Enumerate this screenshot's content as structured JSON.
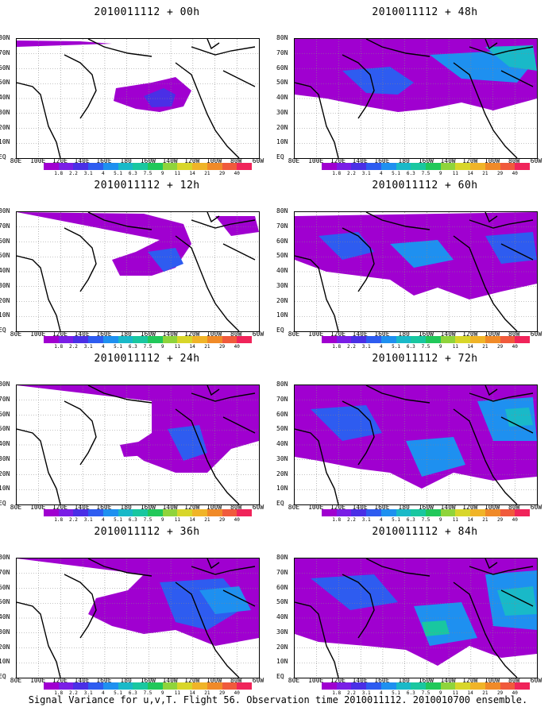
{
  "panels": [
    {
      "title": "2010011112 + 00h"
    },
    {
      "title": "2010011112 + 48h"
    },
    {
      "title": "2010011112 + 12h"
    },
    {
      "title": "2010011112 + 60h"
    },
    {
      "title": "2010011112 + 24h"
    },
    {
      "title": "2010011112 + 72h"
    },
    {
      "title": "2010011112 + 36h"
    },
    {
      "title": "2010011112 + 84h"
    }
  ],
  "lat_labels": [
    "80N",
    "70N",
    "60N",
    "50N",
    "40N",
    "30N",
    "20N",
    "10N",
    "EQ"
  ],
  "lon_labels": [
    "80E",
    "100E",
    "120E",
    "140E",
    "160E",
    "180",
    "160W",
    "140W",
    "120W",
    "100W",
    "80W",
    "60W"
  ],
  "colorbar": {
    "ticks": [
      "1.8",
      "2.2",
      "3.1",
      "4",
      "5.1",
      "6.3",
      "7.5",
      "9",
      "11",
      "14",
      "21",
      "29",
      "40"
    ],
    "colors": [
      "#a000d0",
      "#7a1ee6",
      "#4a2fe6",
      "#2e5cf0",
      "#1e90f0",
      "#19b9c8",
      "#19c7a0",
      "#21c85a",
      "#8fd43b",
      "#d8d62a",
      "#f0b428",
      "#f08a28",
      "#f05a3c",
      "#f0245a"
    ]
  },
  "footer": "Signal Variance for u,v,T. Flight 56. Observation time 2010011112. 2010010700 ensemble."
}
